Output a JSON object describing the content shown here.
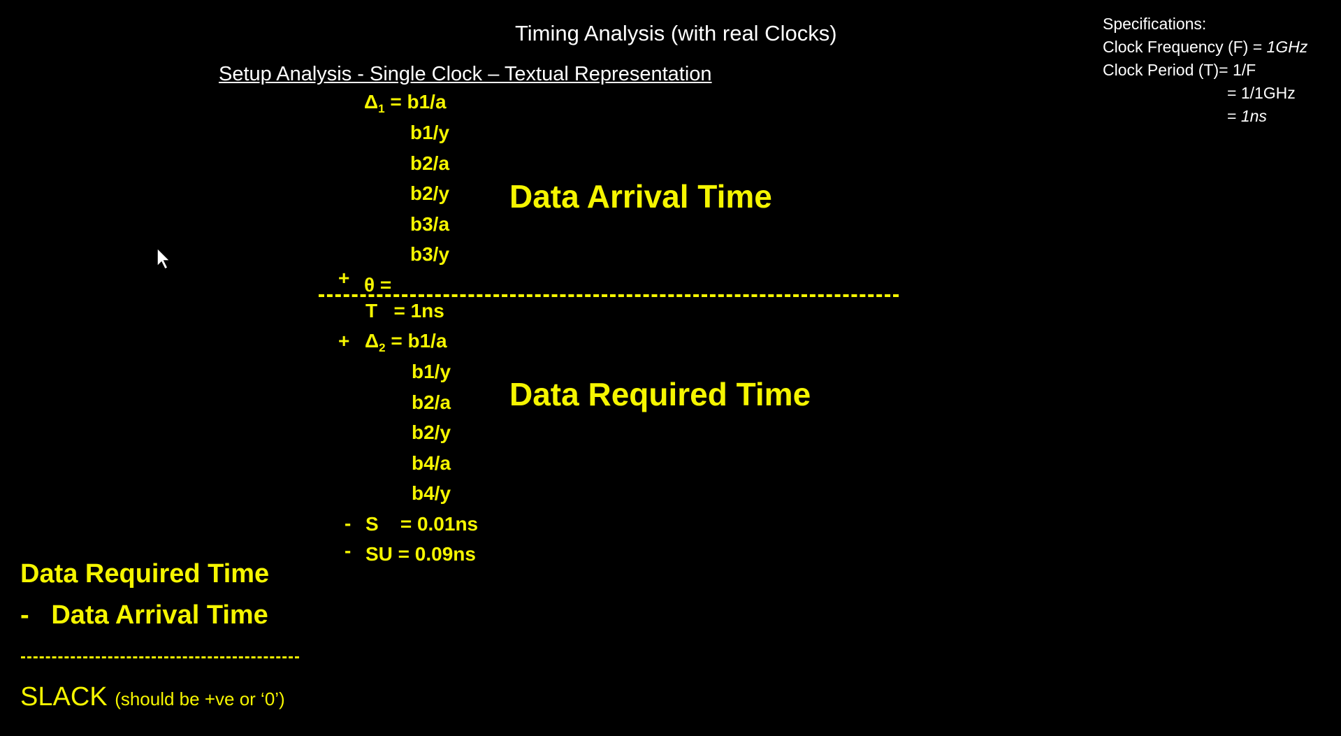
{
  "title": "Timing Analysis (with real Clocks)",
  "subtitle": "Setup Analysis - Single Clock – Textual Representation",
  "specs": {
    "heading": "Specifications:",
    "freq_label": "Clock Frequency (F) = ",
    "freq_value": "1GHz",
    "period_label": "Clock Period (T)= 1/F",
    "period_step": "= 1/1GHz",
    "period_result_prefix": "= ",
    "period_result": "1ns"
  },
  "arrival": {
    "delta_symbol": "Δ",
    "delta_sub": "1",
    "eq": " = b1/a",
    "items": [
      "b1/y",
      "b2/a",
      "b2/y",
      "b3/a",
      "b3/y"
    ],
    "plus": "+",
    "theta": "θ",
    "theta_eq": "="
  },
  "arrival_label": "Data Arrival Time",
  "required": {
    "period_T": "T",
    "period_eq": "= 1ns",
    "plus": "+",
    "delta_symbol": "Δ",
    "delta_sub": "2",
    "eq": " = b1/a",
    "items": [
      "b1/y",
      "b2/a",
      "b2/y",
      "b4/a",
      "b4/y"
    ],
    "minus1": "-",
    "skew": "S",
    "skew_eq": "= 0.01ns",
    "minus2": "-",
    "setup_eq": "SU = 0.09ns"
  },
  "required_label": "Data Required Time",
  "summary": {
    "line1": "Data Required Time",
    "minus": "-",
    "line2": "Data Arrival Time",
    "result": "SLACK",
    "note": "(should be +ve or ‘0’)"
  },
  "colors": {
    "accent": "#f5f500",
    "text": "#ffffff",
    "background": "#000000"
  }
}
